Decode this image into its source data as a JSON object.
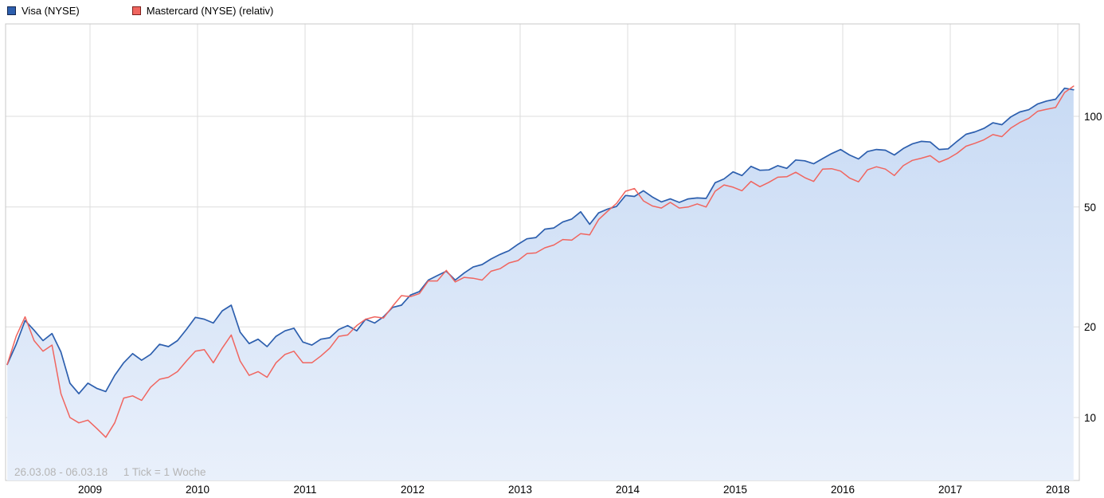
{
  "footnote": {
    "range": "26.03.08 - 06.03.18",
    "tick": "1 Tick = 1 Woche"
  },
  "colors": {
    "grid": "#dedede",
    "plot_border": "#c8c8c8",
    "axis_text": "#000000",
    "footnote_text": "#b5b5b5"
  },
  "chart_data": {
    "type": "line",
    "title": "",
    "xlabel": "",
    "ylabel": "",
    "scale_y": "log",
    "legend_position": "top-left",
    "grid": true,
    "date_range": "26.03.08 - 06.03.18",
    "tick_interval": "1 Woche",
    "x_unit": "decimal_year",
    "x_start": 2008.23,
    "x_step": 0.083333,
    "xlim": [
      2008.2,
      2018.25
    ],
    "ylim": [
      6.2,
      203
    ],
    "y_ticks": [
      10,
      20,
      50,
      100
    ],
    "x_ticks": [
      2009,
      2010,
      2011,
      2012,
      2013,
      2014,
      2015,
      2016,
      2017,
      2018
    ],
    "series": [
      {
        "name": "Visa (NYSE)",
        "color": "#2d5fae",
        "swatch_border": "#13264f",
        "area_fill": true,
        "fill_top": "#c3d7f3",
        "fill_bottom": "#e9f0fb",
        "values": [
          15.0,
          17.5,
          21.0,
          19.5,
          18.0,
          19.0,
          16.5,
          13.0,
          12.0,
          13.0,
          12.5,
          12.2,
          13.8,
          15.2,
          16.3,
          15.5,
          16.2,
          17.5,
          17.2,
          18.0,
          19.6,
          21.5,
          21.2,
          20.6,
          22.6,
          23.6,
          19.2,
          17.6,
          18.2,
          17.2,
          18.6,
          19.4,
          19.8,
          17.8,
          17.4,
          18.2,
          18.4,
          19.6,
          20.2,
          19.4,
          21.2,
          20.6,
          21.6,
          23.2,
          23.6,
          25.5,
          26.2,
          28.6,
          29.6,
          30.6,
          28.6,
          30.2,
          31.6,
          32.2,
          33.6,
          34.8,
          35.8,
          37.6,
          39.2,
          39.6,
          42.2,
          42.6,
          44.6,
          45.6,
          48.2,
          43.8,
          47.8,
          49.2,
          50.2,
          54.6,
          54.2,
          56.6,
          54.0,
          52.0,
          53.2,
          51.8,
          53.2,
          53.6,
          53.4,
          60.2,
          62.0,
          65.4,
          63.6,
          68.2,
          66.2,
          66.4,
          68.6,
          67.2,
          71.6,
          71.2,
          69.6,
          72.4,
          75.2,
          77.6,
          74.4,
          72.2,
          76.4,
          77.6,
          77.2,
          74.4,
          78.2,
          81.0,
          82.6,
          82.2,
          77.6,
          78.0,
          82.6,
          87.2,
          88.8,
          91.2,
          95.2,
          93.8,
          99.6,
          103.4,
          105.2,
          110.0,
          112.4,
          114.0,
          124.0,
          122.5
        ]
      },
      {
        "name": "Mastercard (NYSE) (relativ)",
        "color": "#f0655f",
        "swatch_border": "#7e201c",
        "area_fill": false,
        "values": [
          15.0,
          18.6,
          21.6,
          18.0,
          16.6,
          17.4,
          12.0,
          10.0,
          9.6,
          9.8,
          9.2,
          8.6,
          9.6,
          11.6,
          11.8,
          11.4,
          12.6,
          13.4,
          13.6,
          14.2,
          15.4,
          16.6,
          16.8,
          15.2,
          17.0,
          18.8,
          15.4,
          13.8,
          14.2,
          13.6,
          15.2,
          16.2,
          16.6,
          15.2,
          15.2,
          16.0,
          17.0,
          18.6,
          18.8,
          20.2,
          21.2,
          21.6,
          21.4,
          23.4,
          25.4,
          25.2,
          25.8,
          28.4,
          28.4,
          30.8,
          28.2,
          29.2,
          29.0,
          28.6,
          30.6,
          31.2,
          32.6,
          33.2,
          35.0,
          35.2,
          36.6,
          37.4,
          39.0,
          38.8,
          40.8,
          40.4,
          45.4,
          48.4,
          51.4,
          56.4,
          57.6,
          52.4,
          50.4,
          49.6,
          51.8,
          49.6,
          50.0,
          51.2,
          50.0,
          56.4,
          59.2,
          58.2,
          56.6,
          60.8,
          58.4,
          60.4,
          62.8,
          63.0,
          65.2,
          62.6,
          60.8,
          66.8,
          67.0,
          65.8,
          62.4,
          60.6,
          66.4,
          68.0,
          66.8,
          63.6,
          68.6,
          71.4,
          72.6,
          74.0,
          70.4,
          72.4,
          75.4,
          79.6,
          81.4,
          83.6,
          87.0,
          85.6,
          91.4,
          95.4,
          98.4,
          104.0,
          105.6,
          107.0,
          120.0,
          126.0
        ]
      }
    ]
  }
}
